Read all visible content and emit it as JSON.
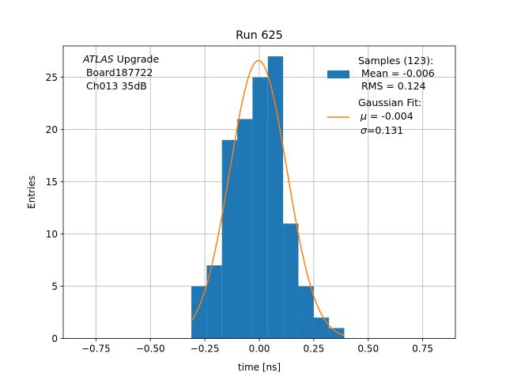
{
  "chart_data": {
    "type": "bar",
    "title": "Run 625",
    "xlabel": "time [ns]",
    "ylabel": "Entries",
    "xlim": [
      -0.9,
      0.9
    ],
    "ylim": [
      0,
      28
    ],
    "xticks": [
      -0.75,
      -0.5,
      -0.25,
      0.0,
      0.25,
      0.5,
      0.75
    ],
    "xtick_labels": [
      "−0.75",
      "−0.50",
      "−0.25",
      "0.00",
      "0.25",
      "0.50",
      "0.75"
    ],
    "yticks": [
      0,
      5,
      10,
      15,
      20,
      25
    ],
    "grid": true,
    "histogram": {
      "bin_edges": [
        -0.312,
        -0.2418,
        -0.1716,
        -0.1014,
        -0.0312,
        0.039,
        0.1092,
        0.1794,
        0.2496,
        0.3198,
        0.39
      ],
      "counts": [
        5,
        7,
        19,
        21,
        25,
        27,
        11,
        5,
        2,
        1
      ],
      "color": "#1f77b4"
    },
    "gaussian_fit": {
      "mu": -0.004,
      "sigma": 0.131,
      "amplitude": 26.6,
      "x_range": [
        -0.312,
        0.39
      ],
      "color": "#ff7f0e"
    },
    "annotation": {
      "line1_italic": "ATLAS",
      "line1_rest": " Upgrade",
      "line2": " Board187722",
      "line3": " Ch013 35dB"
    },
    "legend": {
      "placement": "top-right",
      "hist_lines": [
        "Samples (123):",
        " Mean = -0.006",
        " RMS = 0.124"
      ],
      "fit_title": "Gaussian Fit:",
      "fit_mu_symbol": "μ",
      "fit_mu_value": " = -0.004",
      "fit_sigma_symbol": "σ",
      "fit_sigma_value": "=0.131"
    }
  }
}
